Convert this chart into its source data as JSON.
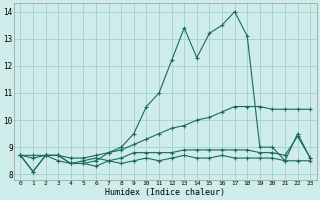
{
  "xlabel": "Humidex (Indice chaleur)",
  "background_color": "#ceecea",
  "line_color": "#1a6b5a",
  "grid_color": "#aad4cf",
  "xlim": [
    -0.5,
    23.5
  ],
  "ylim": [
    7.8,
    14.3
  ],
  "yticks": [
    8,
    9,
    10,
    11,
    12,
    13,
    14
  ],
  "xticks": [
    0,
    1,
    2,
    3,
    4,
    5,
    6,
    7,
    8,
    9,
    10,
    11,
    12,
    13,
    14,
    15,
    16,
    17,
    18,
    19,
    20,
    21,
    22,
    23
  ],
  "series_spiky": [
    8.7,
    8.6,
    8.7,
    8.5,
    8.4,
    8.5,
    8.6,
    8.5,
    8.4,
    8.5,
    8.6,
    8.5,
    8.6,
    8.7,
    8.6,
    8.6,
    8.7,
    8.6,
    8.6,
    8.6,
    8.6,
    8.5,
    8.5,
    8.5
  ],
  "series_noisy": [
    8.7,
    8.1,
    8.7,
    8.7,
    8.4,
    8.4,
    8.3,
    8.5,
    8.6,
    8.8,
    8.8,
    8.8,
    8.8,
    8.9,
    8.9,
    8.9,
    8.9,
    8.9,
    8.9,
    8.8,
    8.8,
    8.7,
    9.4,
    8.6
  ],
  "series_diag": [
    8.7,
    8.7,
    8.7,
    8.7,
    8.6,
    8.6,
    8.7,
    8.8,
    8.9,
    9.1,
    9.3,
    9.5,
    9.7,
    9.8,
    10.0,
    10.1,
    10.3,
    10.5,
    10.5,
    10.5,
    10.4,
    10.4,
    10.4,
    10.4
  ],
  "series_peak": [
    8.7,
    8.1,
    8.7,
    8.7,
    8.4,
    8.4,
    8.5,
    8.8,
    9.0,
    9.5,
    10.5,
    11.0,
    12.2,
    13.4,
    12.3,
    13.2,
    13.5,
    14.0,
    13.1,
    9.0,
    9.0,
    8.5,
    9.5,
    8.6
  ]
}
